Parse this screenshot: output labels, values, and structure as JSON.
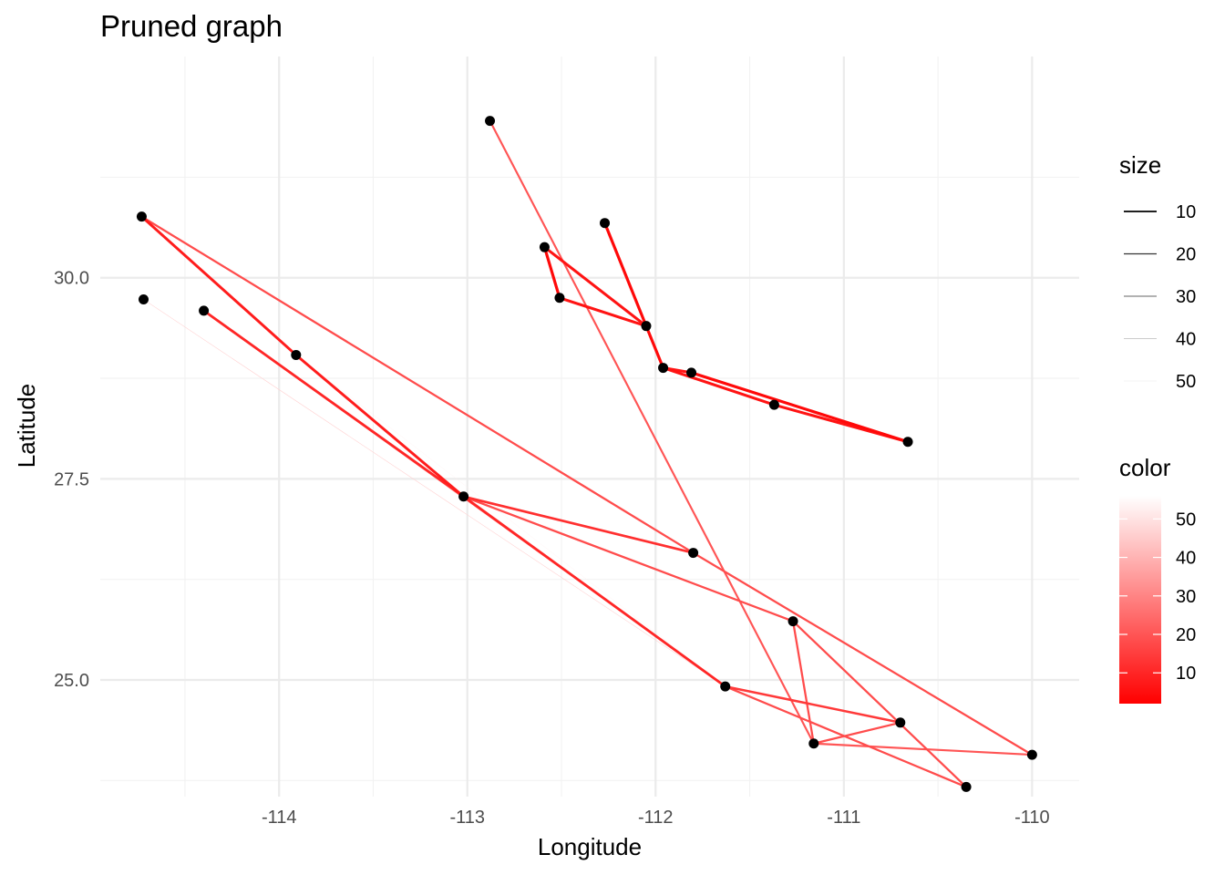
{
  "chart_data": {
    "type": "scatter",
    "title": "Pruned graph",
    "xlabel": "Longitude",
    "ylabel": "Latitude",
    "xlim": [
      -114.95,
      -109.75
    ],
    "ylim": [
      23.55,
      32.75
    ],
    "x_ticks": [
      {
        "value": -114,
        "label": "-114"
      },
      {
        "value": -113,
        "label": "-113"
      },
      {
        "value": -112,
        "label": "-112"
      },
      {
        "value": -111,
        "label": "-111"
      },
      {
        "value": -110,
        "label": "-110"
      }
    ],
    "y_ticks": [
      {
        "value": 25.0,
        "label": "25.0"
      },
      {
        "value": 27.5,
        "label": "27.5"
      },
      {
        "value": 30.0,
        "label": "30.0"
      }
    ],
    "grid": true,
    "nodes": [
      {
        "x": -112.88,
        "y": 31.95
      },
      {
        "x": -114.73,
        "y": 30.76
      },
      {
        "x": -112.27,
        "y": 30.68
      },
      {
        "x": -112.59,
        "y": 30.38
      },
      {
        "x": -114.72,
        "y": 29.73
      },
      {
        "x": -112.51,
        "y": 29.75
      },
      {
        "x": -114.4,
        "y": 29.59
      },
      {
        "x": -112.05,
        "y": 29.4
      },
      {
        "x": -113.91,
        "y": 29.04
      },
      {
        "x": -111.96,
        "y": 28.88
      },
      {
        "x": -111.81,
        "y": 28.82
      },
      {
        "x": -111.37,
        "y": 28.42
      },
      {
        "x": -110.66,
        "y": 27.96
      },
      {
        "x": -113.02,
        "y": 27.28
      },
      {
        "x": -111.8,
        "y": 26.58
      },
      {
        "x": -111.27,
        "y": 25.73
      },
      {
        "x": -111.63,
        "y": 24.92
      },
      {
        "x": -110.7,
        "y": 24.47
      },
      {
        "x": -111.16,
        "y": 24.21
      },
      {
        "x": -110.0,
        "y": 24.07
      },
      {
        "x": -110.35,
        "y": 23.67
      }
    ],
    "edges": [
      {
        "from": 2,
        "to": 7,
        "size": 8,
        "color": 4
      },
      {
        "from": 3,
        "to": 5,
        "size": 8,
        "color": 4
      },
      {
        "from": 3,
        "to": 7,
        "size": 10,
        "color": 6
      },
      {
        "from": 5,
        "to": 7,
        "size": 10,
        "color": 6
      },
      {
        "from": 7,
        "to": 9,
        "size": 8,
        "color": 4
      },
      {
        "from": 9,
        "to": 10,
        "size": 10,
        "color": 6
      },
      {
        "from": 9,
        "to": 11,
        "size": 10,
        "color": 6
      },
      {
        "from": 10,
        "to": 12,
        "size": 8,
        "color": 4
      },
      {
        "from": 11,
        "to": 12,
        "size": 10,
        "color": 6
      },
      {
        "from": 1,
        "to": 8,
        "size": 12,
        "color": 8
      },
      {
        "from": 8,
        "to": 13,
        "size": 12,
        "color": 8
      },
      {
        "from": 6,
        "to": 13,
        "size": 14,
        "color": 10
      },
      {
        "from": 13,
        "to": 16,
        "size": 14,
        "color": 10
      },
      {
        "from": 13,
        "to": 14,
        "size": 16,
        "color": 12
      },
      {
        "from": 1,
        "to": 14,
        "size": 22,
        "color": 18
      },
      {
        "from": 13,
        "to": 15,
        "size": 22,
        "color": 18
      },
      {
        "from": 14,
        "to": 19,
        "size": 22,
        "color": 18
      },
      {
        "from": 0,
        "to": 18,
        "size": 24,
        "color": 20
      },
      {
        "from": 15,
        "to": 18,
        "size": 22,
        "color": 18
      },
      {
        "from": 15,
        "to": 20,
        "size": 22,
        "color": 18
      },
      {
        "from": 16,
        "to": 17,
        "size": 18,
        "color": 14
      },
      {
        "from": 16,
        "to": 20,
        "size": 22,
        "color": 18
      },
      {
        "from": 18,
        "to": 17,
        "size": 22,
        "color": 18
      },
      {
        "from": 18,
        "to": 19,
        "size": 24,
        "color": 20
      },
      {
        "from": 6,
        "to": 16,
        "size": 36,
        "color": 32
      },
      {
        "from": 4,
        "to": 16,
        "size": 48,
        "color": 46
      },
      {
        "from": 8,
        "to": 16,
        "size": 52,
        "color": 52
      }
    ],
    "legend": {
      "placement": "right",
      "size": {
        "title": "size",
        "items": [
          {
            "value": 10,
            "label": "10"
          },
          {
            "value": 20,
            "label": "20"
          },
          {
            "value": 30,
            "label": "30"
          },
          {
            "value": 40,
            "label": "40"
          },
          {
            "value": 50,
            "label": "50"
          }
        ]
      },
      "color": {
        "title": "color",
        "range": [
          2,
          56
        ],
        "low_color": "#ff0000",
        "high_color": "#ffffff",
        "items": [
          {
            "value": 10,
            "label": "10"
          },
          {
            "value": 20,
            "label": "20"
          },
          {
            "value": 30,
            "label": "30"
          },
          {
            "value": 40,
            "label": "40"
          },
          {
            "value": 50,
            "label": "50"
          }
        ]
      }
    },
    "colors": {
      "node": "#000000"
    }
  }
}
